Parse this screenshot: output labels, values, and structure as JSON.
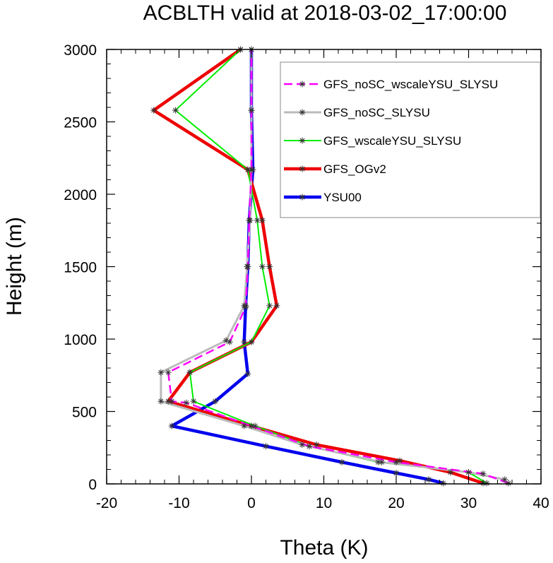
{
  "chart_data": {
    "type": "line",
    "title": "ACBLTH valid at 2018-03-02_17:00:00",
    "xlabel": "Theta (K)",
    "ylabel": "Height (m)",
    "xlim": [
      -20,
      40
    ],
    "ylim": [
      0,
      3000
    ],
    "xticks": [
      "-20",
      "-10",
      "0",
      "10",
      "20",
      "30",
      "40"
    ],
    "yticks": [
      "0",
      "500",
      "1000",
      "1500",
      "2000",
      "2500",
      "3000"
    ],
    "grid": false,
    "legend": "top-right",
    "series": [
      {
        "name": "GFS_noSC_wscaleYSU_SLYSU",
        "color": "#ff00ff",
        "dashed": true,
        "width": 2.5,
        "points": [
          [
            35.5,
            5
          ],
          [
            32,
            70
          ],
          [
            20,
            150
          ],
          [
            8,
            260
          ],
          [
            0,
            400
          ],
          [
            -9,
            560
          ],
          [
            -11,
            570
          ],
          [
            -11.5,
            770
          ],
          [
            -3,
            980
          ],
          [
            -0.8,
            1220
          ],
          [
            -0.5,
            1500
          ],
          [
            -0.3,
            1820
          ],
          [
            0,
            2170
          ],
          [
            0,
            2580
          ],
          [
            0,
            3000
          ]
        ]
      },
      {
        "name": "GFS_noSC_SLYSU",
        "color": "#bbbbbb",
        "dashed": false,
        "width": 3,
        "points": [
          [
            35,
            30
          ],
          [
            30,
            80
          ],
          [
            18,
            150
          ],
          [
            7,
            270
          ],
          [
            -1,
            400
          ],
          [
            -12.5,
            570
          ],
          [
            -12.5,
            770
          ],
          [
            -3.5,
            990
          ],
          [
            -1,
            1230
          ],
          [
            -0.6,
            1500
          ],
          [
            -0.2,
            1820
          ],
          [
            0,
            2170
          ],
          [
            0,
            2580
          ],
          [
            0,
            3000
          ]
        ]
      },
      {
        "name": "GFS_wscaleYSU_SLYSU",
        "color": "#00ee00",
        "dashed": false,
        "width": 2,
        "points": [
          [
            32.5,
            5
          ],
          [
            30,
            80
          ],
          [
            17.5,
            150
          ],
          [
            8,
            260
          ],
          [
            0.5,
            400
          ],
          [
            -8,
            570
          ],
          [
            -8.5,
            770
          ],
          [
            0,
            980
          ],
          [
            2.5,
            1230
          ],
          [
            1.5,
            1500
          ],
          [
            0.8,
            1820
          ],
          [
            -0.5,
            2170
          ],
          [
            -10.5,
            2580
          ],
          [
            -1.5,
            3000
          ]
        ]
      },
      {
        "name": "GFS_OGv2",
        "color": "#ee0000",
        "dashed": false,
        "width": 4.5,
        "points": [
          [
            32,
            5
          ],
          [
            27.5,
            80
          ],
          [
            20.5,
            160
          ],
          [
            9,
            270
          ],
          [
            0,
            400
          ],
          [
            -11.5,
            570
          ],
          [
            -8.5,
            770
          ],
          [
            0,
            980
          ],
          [
            3.5,
            1230
          ],
          [
            2.5,
            1500
          ],
          [
            1.5,
            1820
          ],
          [
            -0.5,
            2170
          ],
          [
            -13.5,
            2580
          ],
          [
            -1.5,
            3000
          ]
        ]
      },
      {
        "name": "YSU00",
        "color": "#0000ee",
        "dashed": false,
        "width": 4.5,
        "points": [
          [
            26.5,
            5
          ],
          [
            24.5,
            30
          ],
          [
            20,
            75
          ],
          [
            12.5,
            150
          ],
          [
            2,
            260
          ],
          [
            -11,
            400
          ],
          [
            -5,
            570
          ],
          [
            -0.5,
            760
          ],
          [
            -1,
            980
          ],
          [
            -0.8,
            1230
          ],
          [
            -0.5,
            1500
          ],
          [
            -0.3,
            1820
          ],
          [
            0.2,
            2170
          ],
          [
            0,
            2580
          ],
          [
            0,
            3000
          ]
        ]
      }
    ]
  }
}
